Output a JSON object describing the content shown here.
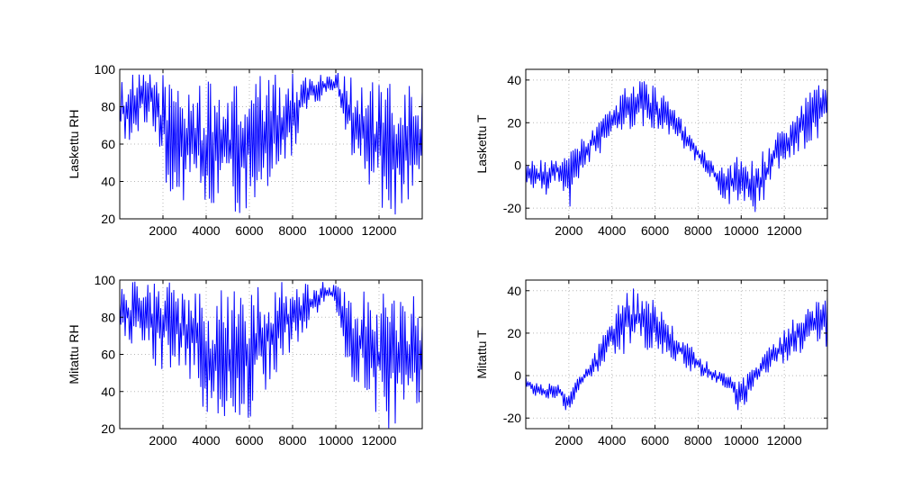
{
  "figure": {
    "background": "#ffffff",
    "line_color": "#0000ff",
    "grid_color": "#b8b8b8"
  },
  "chart_data": [
    {
      "type": "line",
      "ylabel": "Laskettu RH",
      "xlim": [
        0,
        14000
      ],
      "ylim": [
        20,
        100
      ],
      "xticks": [
        2000,
        4000,
        6000,
        8000,
        10000,
        12000
      ],
      "yticks": [
        20,
        40,
        60,
        80,
        100
      ],
      "grid": true,
      "sample_step": 50,
      "series": [
        {
          "envelope": {
            "x": [
              0,
              500,
              1000,
              1500,
              2000,
              2500,
              3000,
              3500,
              4000,
              4500,
              5000,
              5500,
              6000,
              6500,
              7000,
              7500,
              8000,
              8500,
              9000,
              9500,
              10000,
              10500,
              11000,
              11500,
              12000,
              12500,
              13000,
              13500,
              14000
            ],
            "max": [
              94,
              97,
              98,
              99,
              99,
              97,
              96,
              95,
              94,
              92,
              93,
              94,
              95,
              97,
              98,
              98,
              98,
              98,
              97,
              98,
              99,
              98,
              95,
              94,
              93,
              93,
              92,
              92,
              92
            ],
            "min": [
              62,
              60,
              68,
              70,
              40,
              30,
              25,
              22,
              20,
              20,
              24,
              20,
              25,
              30,
              38,
              45,
              52,
              75,
              80,
              85,
              86,
              65,
              40,
              35,
              22,
              20,
              20,
              28,
              35
            ]
          }
        }
      ]
    },
    {
      "type": "line",
      "ylabel": "Laskettu T",
      "xlim": [
        0,
        14000
      ],
      "ylim": [
        -25,
        45
      ],
      "xticks": [
        2000,
        4000,
        6000,
        8000,
        10000,
        12000
      ],
      "yticks": [
        -20,
        0,
        20,
        40
      ],
      "grid": true,
      "sample_step": 50,
      "series": [
        {
          "envelope": {
            "x": [
              0,
              500,
              1000,
              1500,
              2000,
              2500,
              3000,
              3500,
              4000,
              4500,
              5000,
              5500,
              6000,
              6500,
              7000,
              7500,
              8000,
              8500,
              9000,
              9500,
              10000,
              10500,
              11000,
              11500,
              12000,
              12500,
              13000,
              13500,
              14000
            ],
            "max": [
              2,
              3,
              2,
              4,
              6,
              12,
              18,
              24,
              30,
              36,
              40,
              40,
              38,
              32,
              26,
              18,
              10,
              4,
              2,
              3,
              5,
              4,
              8,
              14,
              20,
              26,
              32,
              38,
              42
            ],
            "min": [
              -10,
              -12,
              -14,
              -8,
              -25,
              -5,
              2,
              6,
              10,
              14,
              16,
              18,
              16,
              14,
              10,
              6,
              0,
              -5,
              -15,
              -20,
              -18,
              -22,
              -24,
              -4,
              0,
              4,
              8,
              10,
              14
            ]
          }
        }
      ]
    },
    {
      "type": "line",
      "ylabel": "Mitattu RH",
      "xlim": [
        0,
        14000
      ],
      "ylim": [
        20,
        100
      ],
      "xticks": [
        2000,
        4000,
        6000,
        8000,
        10000,
        12000
      ],
      "yticks": [
        20,
        40,
        60,
        80,
        100
      ],
      "grid": true,
      "sample_step": 50,
      "series": [
        {
          "envelope": {
            "x": [
              0,
              500,
              1000,
              1500,
              2000,
              2500,
              3000,
              3500,
              4000,
              4500,
              5000,
              5500,
              6000,
              6500,
              7000,
              7500,
              8000,
              8500,
              9000,
              9500,
              10000,
              10500,
              11000,
              11500,
              12000,
              12500,
              13000,
              13500,
              14000
            ],
            "max": [
              98,
              99,
              100,
              99,
              100,
              99,
              98,
              97,
              96,
              95,
              96,
              97,
              99,
              100,
              100,
              100,
              100,
              100,
              99,
              99,
              98,
              97,
              95,
              94,
              93,
              93,
              93,
              94,
              92
            ],
            "min": [
              68,
              65,
              60,
              55,
              50,
              52,
              48,
              45,
              22,
              20,
              20,
              25,
              20,
              30,
              45,
              55,
              62,
              70,
              80,
              88,
              85,
              55,
              40,
              35,
              20,
              20,
              20,
              30,
              35
            ]
          }
        }
      ]
    },
    {
      "type": "line",
      "ylabel": "Mitattu T",
      "xlim": [
        0,
        14000
      ],
      "ylim": [
        -25,
        45
      ],
      "xticks": [
        2000,
        4000,
        6000,
        8000,
        10000,
        12000
      ],
      "yticks": [
        -20,
        0,
        20,
        40
      ],
      "grid": true,
      "sample_step": 50,
      "series": [
        {
          "envelope": {
            "x": [
              0,
              500,
              1000,
              1500,
              2000,
              2500,
              3000,
              3500,
              4000,
              4500,
              5000,
              5500,
              6000,
              6500,
              7000,
              7500,
              8000,
              8500,
              9000,
              9500,
              10000,
              10500,
              11000,
              11500,
              12000,
              12500,
              13000,
              13500,
              14000
            ],
            "max": [
              0,
              -2,
              -4,
              -2,
              -8,
              2,
              6,
              18,
              28,
              38,
              42,
              40,
              36,
              28,
              22,
              16,
              10,
              6,
              2,
              2,
              -2,
              4,
              10,
              16,
              22,
              28,
              32,
              36,
              40
            ],
            "min": [
              -6,
              -10,
              -12,
              -10,
              -20,
              -6,
              -2,
              2,
              8,
              10,
              12,
              12,
              10,
              8,
              6,
              2,
              0,
              -2,
              -4,
              -8,
              -20,
              -6,
              0,
              2,
              6,
              8,
              10,
              12,
              12
            ]
          }
        }
      ]
    }
  ]
}
